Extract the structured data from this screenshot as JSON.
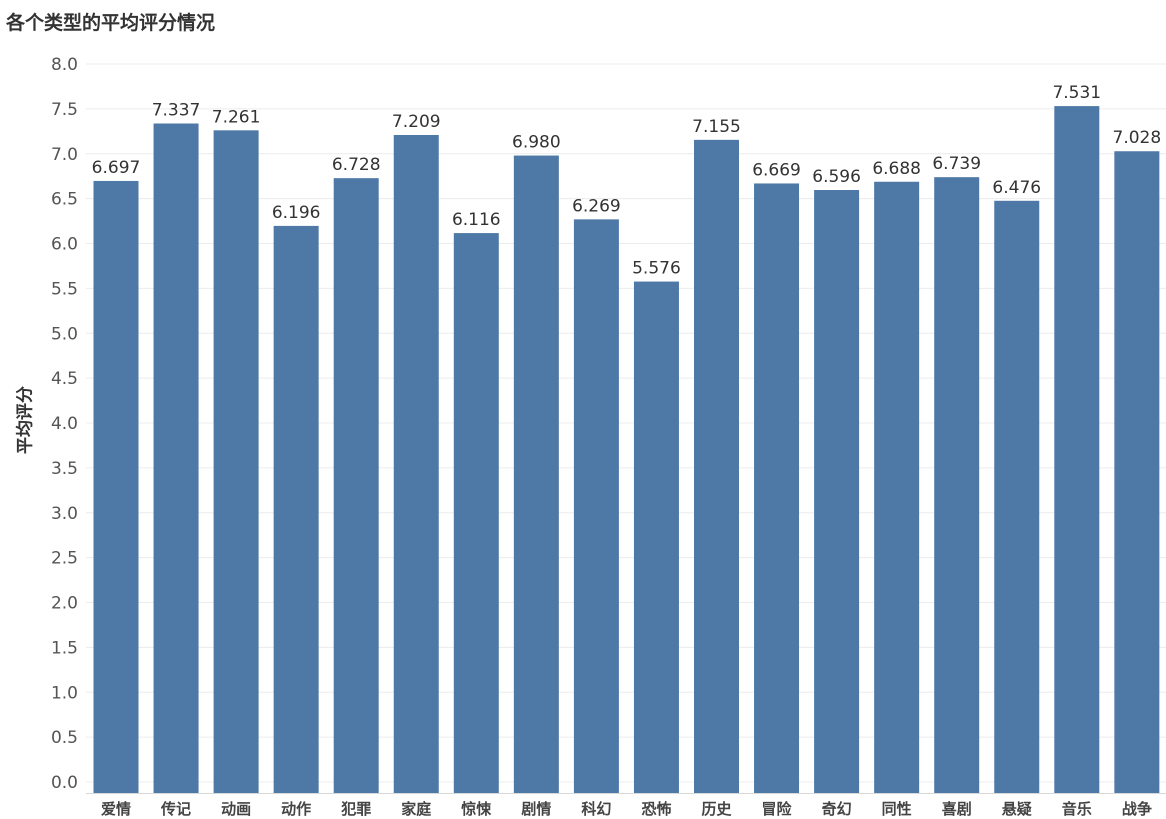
{
  "chart_data": {
    "type": "bar",
    "title": "各个类型的平均评分情况",
    "xlabel": "",
    "ylabel": "平均评分",
    "categories": [
      "爱情",
      "传记",
      "动画",
      "动作",
      "犯罪",
      "家庭",
      "惊悚",
      "剧情",
      "科幻",
      "恐怖",
      "历史",
      "冒险",
      "奇幻",
      "同性",
      "喜剧",
      "悬疑",
      "音乐",
      "战争"
    ],
    "values": [
      6.697,
      7.337,
      7.261,
      6.196,
      6.728,
      7.209,
      6.116,
      6.98,
      6.269,
      5.576,
      7.155,
      6.669,
      6.596,
      6.688,
      6.739,
      6.476,
      7.531,
      7.028
    ],
    "value_labels": [
      "6.697",
      "7.337",
      "7.261",
      "6.196",
      "6.728",
      "7.209",
      "6.116",
      "6.980",
      "6.269",
      "5.576",
      "7.155",
      "6.669",
      "6.596",
      "6.688",
      "6.739",
      "6.476",
      "7.531",
      "7.028"
    ],
    "ylim": [
      0,
      8
    ],
    "yticks": [
      "0.0",
      "0.5",
      "1.0",
      "1.5",
      "2.0",
      "2.5",
      "3.0",
      "3.5",
      "4.0",
      "4.5",
      "5.0",
      "5.5",
      "6.0",
      "6.5",
      "7.0",
      "7.5",
      "8.0"
    ],
    "grid": true,
    "legend": "none",
    "bar_color": "#4e79a7"
  }
}
